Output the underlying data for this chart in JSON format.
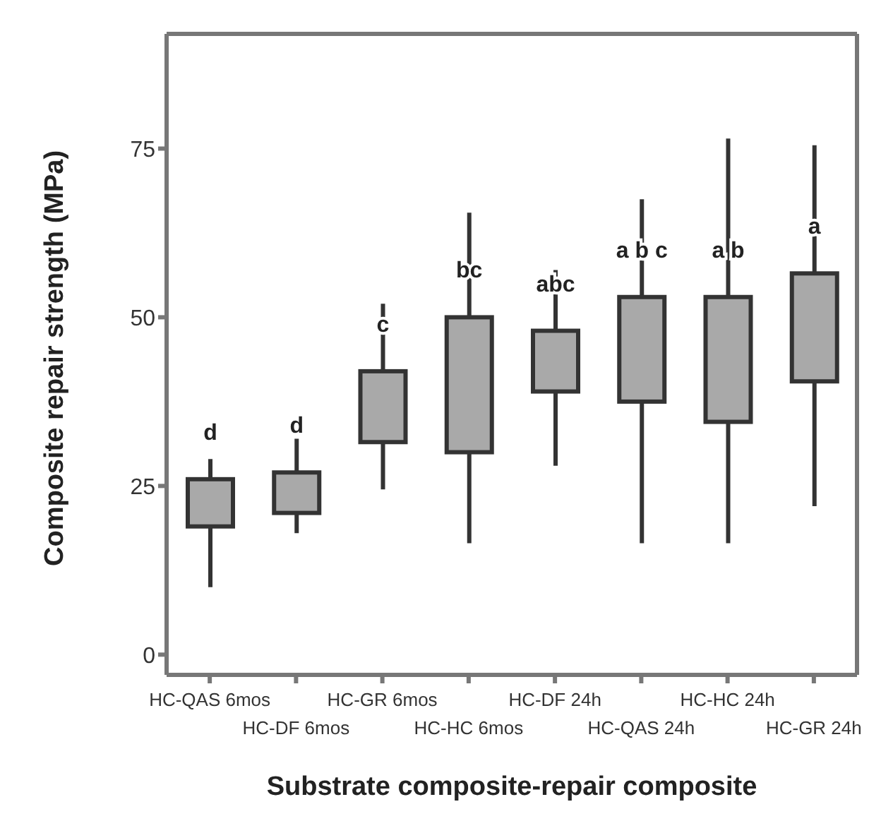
{
  "chart_data": {
    "type": "box",
    "xlabel": "Substrate composite-repair composite",
    "ylabel": "Composite repair strength (MPa)",
    "categories": [
      "HC-QAS 6mos",
      "HC-DF 6mos",
      "HC-GR 6mos",
      "HC-HC 6mos",
      "HC-DF 24h",
      "HC-QAS 24h",
      "HC-HC 24h",
      "HC-GR 24h"
    ],
    "boxes": [
      {
        "low": 10,
        "q1": 19,
        "q3": 26,
        "high": 29
      },
      {
        "low": 18,
        "q1": 21,
        "q3": 27,
        "high": 32
      },
      {
        "low": 24.5,
        "q1": 31.5,
        "q3": 42,
        "high": 52
      },
      {
        "low": 16.5,
        "q1": 30,
        "q3": 50,
        "high": 65.5
      },
      {
        "low": 28,
        "q1": 39,
        "q3": 48,
        "high": 57
      },
      {
        "low": 16.5,
        "q1": 37.5,
        "q3": 53,
        "high": 67.5
      },
      {
        "low": 16.5,
        "q1": 34.5,
        "q3": 53,
        "high": 76.5
      },
      {
        "low": 22,
        "q1": 40.5,
        "q3": 56.5,
        "high": 75.5
      }
    ],
    "color": "#a9a9a9",
    "ylim": [
      -3,
      92
    ],
    "yticks": [
      0,
      25,
      50,
      75
    ],
    "grid": false,
    "annotations": [
      "d",
      "d",
      "c",
      "bc",
      "abc",
      "a b c",
      "a b",
      "a"
    ]
  }
}
